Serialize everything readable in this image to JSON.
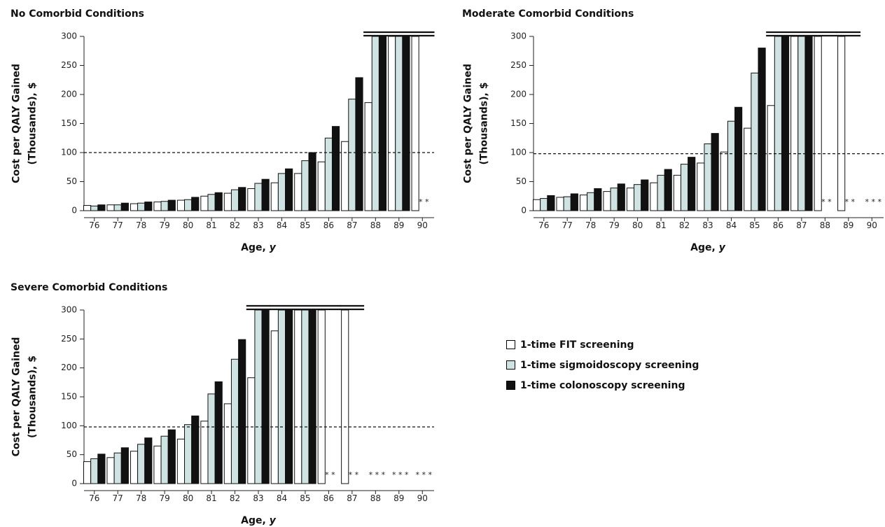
{
  "chart_data": [
    {
      "type": "bar",
      "title": "No Comorbid Conditions",
      "xlabel_text": "Age, ",
      "xlabel_italic": "y",
      "ylabel": [
        "Cost per QALY Gained",
        "(Thousands), $"
      ],
      "ylim": [
        0,
        300
      ],
      "yticks": [
        0,
        50,
        100,
        150,
        200,
        250,
        300
      ],
      "threshold": 100,
      "categories": [
        "76",
        "77",
        "78",
        "79",
        "80",
        "81",
        "82",
        "83",
        "84",
        "85",
        "86",
        "87",
        "88",
        "89",
        "90"
      ],
      "series": [
        {
          "name": "1-time FIT screening",
          "values": [
            9,
            10,
            12,
            15,
            18,
            25,
            30,
            38,
            48,
            64,
            84,
            119,
            186,
            300,
            300
          ]
        },
        {
          "name": "1-time sigmoidoscopy screening",
          "values": [
            8,
            10,
            13,
            16,
            19,
            28,
            36,
            47,
            64,
            86,
            125,
            192,
            300,
            300,
            null
          ]
        },
        {
          "name": "1-time colonoscopy screening",
          "values": [
            10,
            13,
            15,
            18,
            23,
            31,
            40,
            54,
            72,
            100,
            145,
            229,
            300,
            300,
            null
          ]
        }
      ],
      "annotations": [
        {
          "x": "90",
          "text": "* *"
        }
      ],
      "over_limit_brackets": [
        {
          "from": "88",
          "to": "90"
        }
      ]
    },
    {
      "type": "bar",
      "title": "Moderate Comorbid Conditions",
      "xlabel_text": "Age, ",
      "xlabel_italic": "y",
      "ylabel": [
        "Cost per QALY Gained",
        "(Thousands), $"
      ],
      "ylim": [
        0,
        300
      ],
      "yticks": [
        0,
        50,
        100,
        150,
        200,
        250,
        300
      ],
      "threshold": 98,
      "categories": [
        "76",
        "77",
        "78",
        "79",
        "80",
        "81",
        "82",
        "83",
        "84",
        "85",
        "86",
        "87",
        "88",
        "89",
        "90"
      ],
      "series": [
        {
          "name": "1-time FIT screening",
          "values": [
            19,
            23,
            27,
            33,
            39,
            48,
            61,
            82,
            101,
            142,
            181,
            300,
            300,
            300,
            null
          ]
        },
        {
          "name": "1-time sigmoidoscopy screening",
          "values": [
            21,
            24,
            31,
            39,
            45,
            61,
            80,
            115,
            154,
            237,
            300,
            300,
            null,
            null,
            null
          ]
        },
        {
          "name": "1-time colonoscopy screening",
          "values": [
            26,
            29,
            38,
            46,
            53,
            71,
            92,
            133,
            178,
            280,
            300,
            300,
            null,
            null,
            null
          ]
        }
      ],
      "annotations": [
        {
          "x": "88",
          "text": "* *"
        },
        {
          "x": "89",
          "text": "* *"
        },
        {
          "x": "90",
          "text": "* * *"
        }
      ],
      "over_limit_brackets": [
        {
          "from": "86",
          "to": "88"
        },
        {
          "from": "89",
          "to": "89"
        }
      ]
    },
    {
      "type": "bar",
      "title": "Severe Comorbid Conditions",
      "xlabel_text": "Age, ",
      "xlabel_italic": "y",
      "ylabel": [
        "Cost per QALY Gained",
        "(Thousands), $"
      ],
      "ylim": [
        0,
        300
      ],
      "yticks": [
        0,
        50,
        100,
        150,
        200,
        250,
        300
      ],
      "threshold": 98,
      "categories": [
        "76",
        "77",
        "78",
        "79",
        "80",
        "81",
        "82",
        "83",
        "84",
        "85",
        "86",
        "87",
        "88",
        "89",
        "90"
      ],
      "series": [
        {
          "name": "1-time FIT screening",
          "values": [
            38,
            45,
            56,
            65,
            77,
            108,
            138,
            183,
            264,
            300,
            300,
            300,
            null,
            null,
            null
          ]
        },
        {
          "name": "1-time sigmoidoscopy screening",
          "values": [
            43,
            53,
            68,
            82,
            102,
            155,
            215,
            300,
            300,
            300,
            null,
            null,
            null,
            null,
            null
          ]
        },
        {
          "name": "1-time colonoscopy screening",
          "values": [
            51,
            62,
            79,
            93,
            117,
            176,
            249,
            300,
            300,
            300,
            null,
            null,
            null,
            null,
            null
          ]
        }
      ],
      "annotations": [
        {
          "x": "86",
          "text": "* *"
        },
        {
          "x": "87",
          "text": "* *"
        },
        {
          "x": "88",
          "text": "* * *"
        },
        {
          "x": "89",
          "text": "* * *"
        },
        {
          "x": "90",
          "text": "* * *"
        }
      ],
      "over_limit_brackets": [
        {
          "from": "83",
          "to": "83"
        },
        {
          "from": "84",
          "to": "86"
        },
        {
          "from": "87",
          "to": "87"
        }
      ]
    }
  ],
  "legend": {
    "items": [
      {
        "label": "1-time FIT screening",
        "color": "#ffffff"
      },
      {
        "label": "1-time sigmoidoscopy screening",
        "color": "#cfe3e3"
      },
      {
        "label": "1-time colonoscopy screening",
        "color": "#111111"
      }
    ]
  },
  "colors": {
    "fit": "#ffffff",
    "sigmoidoscopy": "#cfe3e3",
    "colonoscopy": "#111111",
    "axis": "#222222"
  }
}
